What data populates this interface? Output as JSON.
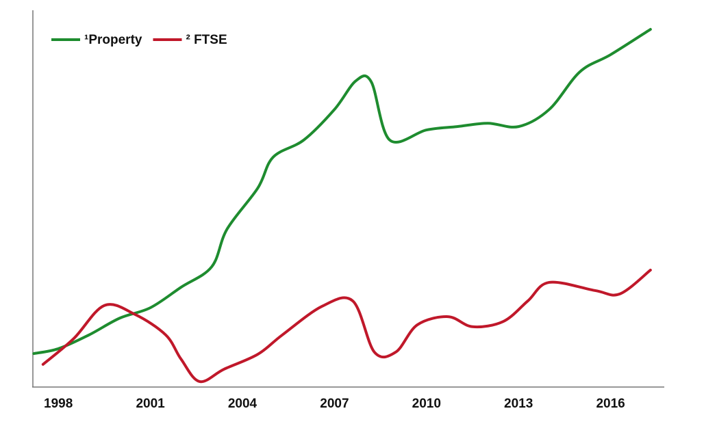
{
  "chart_data": {
    "type": "line",
    "series": [
      {
        "name": "¹Property",
        "color": "#1e8c2f",
        "x": [
          1997.2,
          1998,
          1999,
          2000,
          2001,
          2002,
          2003,
          2003.5,
          2004.5,
          2005,
          2006,
          2007,
          2007.7,
          2008.2,
          2008.8,
          2010,
          2011,
          2012,
          2013,
          2014,
          2015,
          2016,
          2017.3
        ],
        "values": [
          8.8,
          10.1,
          13.8,
          18.3,
          21.1,
          26.6,
          32.1,
          42.2,
          53.2,
          61.5,
          66.1,
          74.3,
          82.0,
          81.7,
          66.1,
          68.8,
          69.7,
          70.6,
          69.7,
          74.3,
          84.4,
          89.0,
          95.8
        ]
      },
      {
        "name": "² FTSE",
        "color": "#c0182a",
        "x": [
          1997.5,
          1998.5,
          1999.5,
          2000.5,
          2001.5,
          2002,
          2002.6,
          2003.4,
          2004.5,
          2005.3,
          2006.6,
          2007.6,
          2008.3,
          2009,
          2009.7,
          2010.7,
          2011.5,
          2012.5,
          2013.3,
          2014,
          2015.5,
          2016.3,
          2017.3
        ],
        "values": [
          5.9,
          12.8,
          21.7,
          19.3,
          13.8,
          7.3,
          1.3,
          4.6,
          8.6,
          13.8,
          21.5,
          22.9,
          9.2,
          9.2,
          16.5,
          18.7,
          16.0,
          17.4,
          22.9,
          27.9,
          25.7,
          24.8,
          31.2
        ]
      }
    ],
    "xlim": [
      1997.17,
      2017.75
    ],
    "xticks": [
      1998,
      2001,
      2004,
      2007,
      2010,
      2013,
      2016
    ],
    "ylim": [
      0,
      100
    ],
    "legend": "top-left"
  }
}
